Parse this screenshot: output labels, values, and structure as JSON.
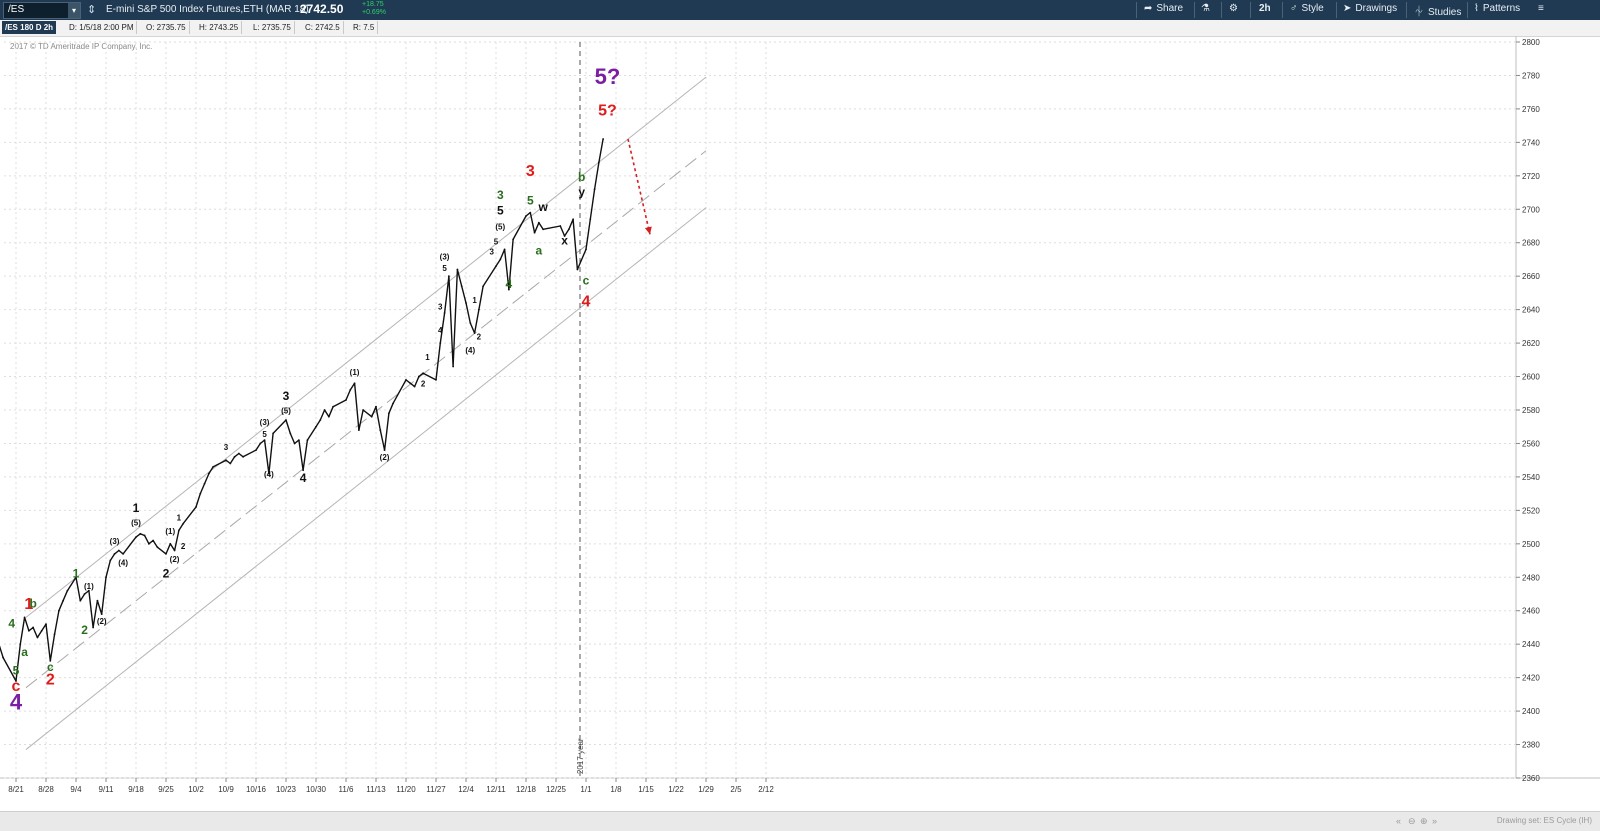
{
  "toolbar": {
    "symbol": "/ES",
    "description": "E-mini S&P 500 Index Futures,ETH (MAR 18)",
    "last": "2742.50",
    "change": "+18.75",
    "change_pct": "+0.69%",
    "share": "Share",
    "timeframe": "2h",
    "style": "Style",
    "drawings": "Drawings",
    "studies": "Studies",
    "patterns": "Patterns"
  },
  "header": {
    "chart_id": "/ES 180 D 2h",
    "date": "D: 1/5/18 2:00 PM",
    "open": "O: 2735.75",
    "high": "H: 2743.25",
    "low": "L: 2735.75",
    "close": "C: 2742.5",
    "range": "R: 7.5"
  },
  "copyright": "2017 © TD Ameritrade IP Company, Inc.",
  "footer": {
    "drawing_set": "Drawing set: ES Cycle (IH)"
  },
  "chart_data": {
    "type": "line",
    "x_ticks": [
      "8/21",
      "8/28",
      "9/4",
      "9/11",
      "9/18",
      "9/25",
      "10/2",
      "10/9",
      "10/16",
      "10/23",
      "10/30",
      "11/6",
      "11/13",
      "11/20",
      "11/27",
      "12/4",
      "12/11",
      "12/18",
      "12/25",
      "1/1",
      "1/8",
      "1/15",
      "1/22",
      "1/29",
      "2/5",
      "2/12"
    ],
    "y_ticks": [
      2360,
      2380,
      2400,
      2420,
      2440,
      2460,
      2480,
      2500,
      2520,
      2540,
      2560,
      2580,
      2600,
      2620,
      2640,
      2660,
      2680,
      2700,
      2720,
      2740,
      2760,
      2780,
      2800
    ],
    "ylim": [
      2360,
      2800
    ],
    "series": [
      {
        "values": [
          {
            "x": "8/17",
            "y": 2440
          },
          {
            "x": "8/18",
            "y": 2432
          },
          {
            "x": "8/21",
            "y": 2418
          },
          {
            "x": "8/22",
            "y": 2440
          },
          {
            "x": "8/23",
            "y": 2456
          },
          {
            "x": "8/24",
            "y": 2448
          },
          {
            "x": "8/25",
            "y": 2450
          },
          {
            "x": "8/26",
            "y": 2444
          },
          {
            "x": "8/27",
            "y": 2448
          },
          {
            "x": "8/28",
            "y": 2452
          },
          {
            "x": "8/29",
            "y": 2430
          },
          {
            "x": "8/30",
            "y": 2446
          },
          {
            "x": "8/31",
            "y": 2460
          },
          {
            "x": "9/1",
            "y": 2466
          },
          {
            "x": "9/2",
            "y": 2472
          },
          {
            "x": "9/4",
            "y": 2480
          },
          {
            "x": "9/5",
            "y": 2466
          },
          {
            "x": "9/6",
            "y": 2470
          },
          {
            "x": "9/7",
            "y": 2472
          },
          {
            "x": "9/8",
            "y": 2450
          },
          {
            "x": "9/9",
            "y": 2466
          },
          {
            "x": "9/10",
            "y": 2458
          },
          {
            "x": "9/11",
            "y": 2480
          },
          {
            "x": "9/12",
            "y": 2490
          },
          {
            "x": "9/13",
            "y": 2494
          },
          {
            "x": "9/14",
            "y": 2496
          },
          {
            "x": "9/15",
            "y": 2494
          },
          {
            "x": "9/18",
            "y": 2504
          },
          {
            "x": "9/19",
            "y": 2506
          },
          {
            "x": "9/20",
            "y": 2505
          },
          {
            "x": "9/21",
            "y": 2500
          },
          {
            "x": "9/22",
            "y": 2502
          },
          {
            "x": "9/23",
            "y": 2498
          },
          {
            "x": "9/25",
            "y": 2494
          },
          {
            "x": "9/26",
            "y": 2500
          },
          {
            "x": "9/27",
            "y": 2496
          },
          {
            "x": "9/28",
            "y": 2508
          },
          {
            "x": "9/29",
            "y": 2512
          },
          {
            "x": "10/2",
            "y": 2522
          },
          {
            "x": "10/3",
            "y": 2530
          },
          {
            "x": "10/4",
            "y": 2536
          },
          {
            "x": "10/5",
            "y": 2542
          },
          {
            "x": "10/6",
            "y": 2546
          },
          {
            "x": "10/9",
            "y": 2550
          },
          {
            "x": "10/10",
            "y": 2548
          },
          {
            "x": "10/11",
            "y": 2552
          },
          {
            "x": "10/12",
            "y": 2554
          },
          {
            "x": "10/13",
            "y": 2552
          },
          {
            "x": "10/16",
            "y": 2556
          },
          {
            "x": "10/17",
            "y": 2560
          },
          {
            "x": "10/18",
            "y": 2562
          },
          {
            "x": "10/19",
            "y": 2542
          },
          {
            "x": "10/20",
            "y": 2566
          },
          {
            "x": "10/23",
            "y": 2574
          },
          {
            "x": "10/24",
            "y": 2566
          },
          {
            "x": "10/25",
            "y": 2560
          },
          {
            "x": "10/26",
            "y": 2562
          },
          {
            "x": "10/27",
            "y": 2544
          },
          {
            "x": "10/28",
            "y": 2562
          },
          {
            "x": "10/30",
            "y": 2570
          },
          {
            "x": "10/31",
            "y": 2574
          },
          {
            "x": "11/1",
            "y": 2580
          },
          {
            "x": "11/2",
            "y": 2576
          },
          {
            "x": "11/3",
            "y": 2582
          },
          {
            "x": "11/6",
            "y": 2586
          },
          {
            "x": "11/7",
            "y": 2592
          },
          {
            "x": "11/8",
            "y": 2596
          },
          {
            "x": "11/9",
            "y": 2568
          },
          {
            "x": "11/10",
            "y": 2580
          },
          {
            "x": "11/12",
            "y": 2576
          },
          {
            "x": "11/13",
            "y": 2582
          },
          {
            "x": "11/14",
            "y": 2568
          },
          {
            "x": "11/15",
            "y": 2556
          },
          {
            "x": "11/16",
            "y": 2578
          },
          {
            "x": "11/17",
            "y": 2584
          },
          {
            "x": "11/20",
            "y": 2598
          },
          {
            "x": "11/21",
            "y": 2596
          },
          {
            "x": "11/22",
            "y": 2594
          },
          {
            "x": "11/23",
            "y": 2600
          },
          {
            "x": "11/24",
            "y": 2602
          },
          {
            "x": "11/27",
            "y": 2598
          },
          {
            "x": "11/28",
            "y": 2620
          },
          {
            "x": "11/29",
            "y": 2638
          },
          {
            "x": "11/30",
            "y": 2660
          },
          {
            "x": "12/1",
            "y": 2606
          },
          {
            "x": "12/2",
            "y": 2664
          },
          {
            "x": "12/3",
            "y": 2654
          },
          {
            "x": "12/4",
            "y": 2644
          },
          {
            "x": "12/5",
            "y": 2632
          },
          {
            "x": "12/6",
            "y": 2626
          },
          {
            "x": "12/7",
            "y": 2640
          },
          {
            "x": "12/8",
            "y": 2654
          },
          {
            "x": "12/11",
            "y": 2666
          },
          {
            "x": "12/12",
            "y": 2670
          },
          {
            "x": "12/13",
            "y": 2676
          },
          {
            "x": "12/14",
            "y": 2652
          },
          {
            "x": "12/15",
            "y": 2682
          },
          {
            "x": "12/18",
            "y": 2696
          },
          {
            "x": "12/19",
            "y": 2698
          },
          {
            "x": "12/20",
            "y": 2686
          },
          {
            "x": "12/21",
            "y": 2692
          },
          {
            "x": "12/22",
            "y": 2688
          },
          {
            "x": "12/26",
            "y": 2690
          },
          {
            "x": "12/27",
            "y": 2684
          },
          {
            "x": "12/28",
            "y": 2688
          },
          {
            "x": "12/29",
            "y": 2694
          },
          {
            "x": "12/30",
            "y": 2664
          },
          {
            "x": "1/1",
            "y": 2676
          },
          {
            "x": "1/2",
            "y": 2694
          },
          {
            "x": "1/3",
            "y": 2712
          },
          {
            "x": "1/4",
            "y": 2728
          },
          {
            "x": "1/5",
            "y": 2742
          }
        ]
      }
    ],
    "channels": [
      {
        "points": [
          {
            "x": "8/21",
            "y": 2456
          },
          {
            "x": "1/29",
            "y": 2779
          }
        ],
        "style": "solid"
      },
      {
        "points": [
          {
            "x": "8/21",
            "y": 2414
          },
          {
            "x": "1/29",
            "y": 2735
          }
        ],
        "style": "dashed"
      },
      {
        "points": [
          {
            "x": "8/21",
            "y": 2377
          },
          {
            "x": "1/29",
            "y": 2701
          }
        ],
        "style": "solid"
      }
    ],
    "vline": {
      "x": "1/1",
      "label": "2017 year"
    },
    "forecast_arrow": {
      "from": {
        "x": "1/8",
        "y": 2742
      },
      "to": {
        "x": "1/15",
        "y": 2685
      },
      "color": "#d42020"
    },
    "wave_labels": [
      {
        "text": "1",
        "x": "8/24",
        "y": 2461,
        "color": "#e01b1b",
        "size": "l"
      },
      {
        "text": "b",
        "x": "8/25",
        "y": 2462,
        "color": "#2a6e1e",
        "size": "m"
      },
      {
        "text": "4",
        "x": "8/20",
        "y": 2450,
        "color": "#2a6e1e",
        "size": "m"
      },
      {
        "text": "a",
        "x": "8/23",
        "y": 2433,
        "color": "#2a6e1e",
        "size": "m"
      },
      {
        "text": "5",
        "x": "8/21",
        "y": 2422,
        "color": "#2a6e1e",
        "size": "m"
      },
      {
        "text": "c",
        "x": "8/21",
        "y": 2412,
        "color": "#e01b1b",
        "size": "l"
      },
      {
        "text": "4",
        "x": "8/21",
        "y": 2401,
        "color": "#7b1fa2",
        "size": "xl"
      },
      {
        "text": "c",
        "x": "8/29",
        "y": 2424,
        "color": "#2a6e1e",
        "size": "m"
      },
      {
        "text": "2",
        "x": "8/29",
        "y": 2416,
        "color": "#e01b1b",
        "size": "l"
      },
      {
        "text": "1",
        "x": "9/4",
        "y": 2480,
        "color": "#2a6e1e",
        "size": "m"
      },
      {
        "text": "(1)",
        "x": "9/7",
        "y": 2473,
        "color": "#111111",
        "size": "s"
      },
      {
        "text": "2",
        "x": "9/6",
        "y": 2446,
        "color": "#2a6e1e",
        "size": "m"
      },
      {
        "text": "(2)",
        "x": "9/10",
        "y": 2452,
        "color": "#111111",
        "size": "s"
      },
      {
        "text": "(3)",
        "x": "9/13",
        "y": 2500,
        "color": "#111111",
        "size": "s"
      },
      {
        "text": "(4)",
        "x": "9/15",
        "y": 2487,
        "color": "#111111",
        "size": "s"
      },
      {
        "text": "1",
        "x": "9/18",
        "y": 2519,
        "color": "#111111",
        "size": "m"
      },
      {
        "text": "(5)",
        "x": "9/18",
        "y": 2511,
        "color": "#111111",
        "size": "s"
      },
      {
        "text": "(1)",
        "x": "9/26",
        "y": 2506,
        "color": "#111111",
        "size": "s"
      },
      {
        "text": "1",
        "x": "9/28",
        "y": 2514,
        "color": "#111111",
        "size": "s"
      },
      {
        "text": "2",
        "x": "9/29",
        "y": 2497,
        "color": "#111111",
        "size": "s"
      },
      {
        "text": "(2)",
        "x": "9/27",
        "y": 2489,
        "color": "#111111",
        "size": "s"
      },
      {
        "text": "2",
        "x": "9/25",
        "y": 2480,
        "color": "#111111",
        "size": "m"
      },
      {
        "text": "3",
        "x": "10/9",
        "y": 2556,
        "color": "#111111",
        "size": "s"
      },
      {
        "text": "(3)",
        "x": "10/18",
        "y": 2571,
        "color": "#111111",
        "size": "s"
      },
      {
        "text": "5",
        "x": "10/18",
        "y": 2564,
        "color": "#111111",
        "size": "s"
      },
      {
        "text": "(4)",
        "x": "10/19",
        "y": 2540,
        "color": "#111111",
        "size": "s"
      },
      {
        "text": "3",
        "x": "10/23",
        "y": 2586,
        "color": "#111111",
        "size": "m"
      },
      {
        "text": "(5)",
        "x": "10/23",
        "y": 2578,
        "color": "#111111",
        "size": "s"
      },
      {
        "text": "4",
        "x": "10/27",
        "y": 2537,
        "color": "#111111",
        "size": "m"
      },
      {
        "text": "(1)",
        "x": "11/8",
        "y": 2601,
        "color": "#111111",
        "size": "s"
      },
      {
        "text": "(2)",
        "x": "11/15",
        "y": 2550,
        "color": "#111111",
        "size": "s"
      },
      {
        "text": "1",
        "x": "11/25",
        "y": 2610,
        "color": "#111111",
        "size": "s"
      },
      {
        "text": "2",
        "x": "11/24",
        "y": 2594,
        "color": "#111111",
        "size": "s"
      },
      {
        "text": "3",
        "x": "11/28",
        "y": 2640,
        "color": "#111111",
        "size": "s"
      },
      {
        "text": "4",
        "x": "11/28",
        "y": 2626,
        "color": "#111111",
        "size": "s"
      },
      {
        "text": "(3)",
        "x": "11/29",
        "y": 2670,
        "color": "#111111",
        "size": "s"
      },
      {
        "text": "5",
        "x": "11/29",
        "y": 2663,
        "color": "#111111",
        "size": "s"
      },
      {
        "text": "1",
        "x": "12/6",
        "y": 2644,
        "color": "#111111",
        "size": "s"
      },
      {
        "text": "2",
        "x": "12/7",
        "y": 2622,
        "color": "#111111",
        "size": "s"
      },
      {
        "text": "(4)",
        "x": "12/5",
        "y": 2614,
        "color": "#111111",
        "size": "s"
      },
      {
        "text": "3",
        "x": "12/10",
        "y": 2673,
        "color": "#111111",
        "size": "s"
      },
      {
        "text": "5",
        "x": "12/11",
        "y": 2679,
        "color": "#111111",
        "size": "s"
      },
      {
        "text": "(5)",
        "x": "12/12",
        "y": 2688,
        "color": "#111111",
        "size": "s"
      },
      {
        "text": "5",
        "x": "12/12",
        "y": 2697,
        "color": "#111111",
        "size": "m"
      },
      {
        "text": "3",
        "x": "12/12",
        "y": 2706,
        "color": "#2a6e1e",
        "size": "m"
      },
      {
        "text": "4",
        "x": "12/14",
        "y": 2653,
        "color": "#2a6e1e",
        "size": "m"
      },
      {
        "text": "3",
        "x": "12/19",
        "y": 2720,
        "color": "#e01b1b",
        "size": "l"
      },
      {
        "text": "5",
        "x": "12/19",
        "y": 2703,
        "color": "#2a6e1e",
        "size": "m"
      },
      {
        "text": "w",
        "x": "12/22",
        "y": 2699,
        "color": "#111111",
        "size": "m"
      },
      {
        "text": "a",
        "x": "12/21",
        "y": 2673,
        "color": "#2a6e1e",
        "size": "m"
      },
      {
        "text": "x",
        "x": "12/27",
        "y": 2679,
        "color": "#111111",
        "size": "m"
      },
      {
        "text": "b",
        "x": "12/31",
        "y": 2717,
        "color": "#2a6e1e",
        "size": "m"
      },
      {
        "text": "y",
        "x": "12/31",
        "y": 2708,
        "color": "#111111",
        "size": "m"
      },
      {
        "text": "c",
        "x": "1/1",
        "y": 2655,
        "color": "#2a6e1e",
        "size": "m"
      },
      {
        "text": "4",
        "x": "1/1",
        "y": 2642,
        "color": "#e01b1b",
        "size": "l"
      },
      {
        "text": "5?",
        "x": "1/6",
        "y": 2775,
        "color": "#7b1fa2",
        "size": "xl"
      },
      {
        "text": "5?",
        "x": "1/6",
        "y": 2756,
        "color": "#e01b1b",
        "size": "l"
      }
    ]
  }
}
